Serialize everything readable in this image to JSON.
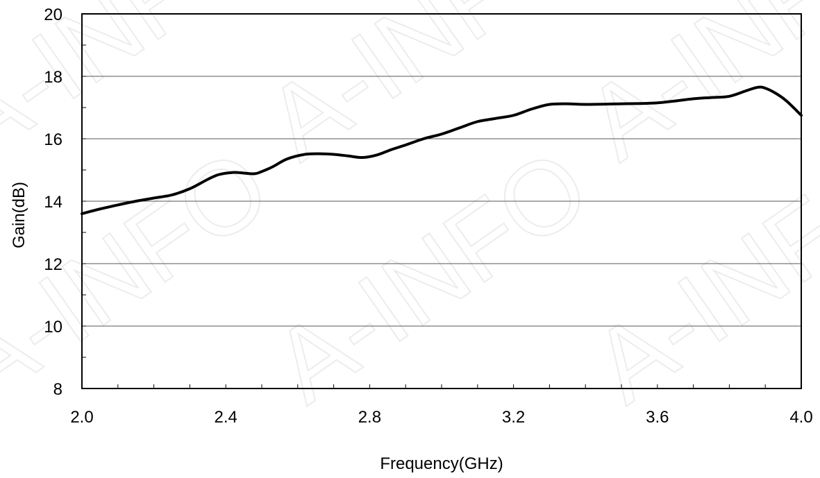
{
  "chart_data": {
    "type": "line",
    "title": "",
    "xlabel": "Frequency(GHz)",
    "ylabel": "Gain(dB)",
    "xlim": [
      2.0,
      4.0
    ],
    "ylim": [
      8,
      20
    ],
    "xticks": [
      "2.0",
      "2.4",
      "2.8",
      "3.2",
      "3.6",
      "4.0"
    ],
    "xtick_values": [
      2.0,
      2.4,
      2.8,
      3.2,
      3.6,
      4.0
    ],
    "yticks": [
      "8",
      "10",
      "12",
      "14",
      "16",
      "18",
      "20"
    ],
    "ytick_values": [
      8,
      10,
      12,
      14,
      16,
      18,
      20
    ],
    "grid": "horizontal",
    "legend": "none",
    "series": [
      {
        "color": "#000000",
        "x": [
          2.0,
          2.05,
          2.1,
          2.15,
          2.2,
          2.25,
          2.3,
          2.35,
          2.38,
          2.42,
          2.45,
          2.48,
          2.5,
          2.53,
          2.57,
          2.62,
          2.66,
          2.7,
          2.74,
          2.78,
          2.82,
          2.86,
          2.9,
          2.95,
          3.0,
          3.05,
          3.1,
          3.15,
          3.2,
          3.25,
          3.3,
          3.35,
          3.4,
          3.5,
          3.6,
          3.7,
          3.75,
          3.8,
          3.85,
          3.88,
          3.9,
          3.93,
          3.96,
          4.0
        ],
        "y": [
          13.6,
          13.75,
          13.88,
          14.0,
          14.1,
          14.2,
          14.4,
          14.7,
          14.85,
          14.92,
          14.9,
          14.88,
          14.95,
          15.1,
          15.35,
          15.5,
          15.52,
          15.5,
          15.45,
          15.4,
          15.48,
          15.65,
          15.8,
          16.0,
          16.15,
          16.35,
          16.55,
          16.65,
          16.75,
          16.95,
          17.1,
          17.12,
          17.1,
          17.12,
          17.15,
          17.28,
          17.32,
          17.36,
          17.55,
          17.65,
          17.62,
          17.45,
          17.2,
          16.75
        ]
      }
    ],
    "watermark": [
      "A-INFO",
      "A-INFO",
      "A-INFO",
      "A-INFO",
      "A-INFO",
      "A-INFO"
    ]
  }
}
